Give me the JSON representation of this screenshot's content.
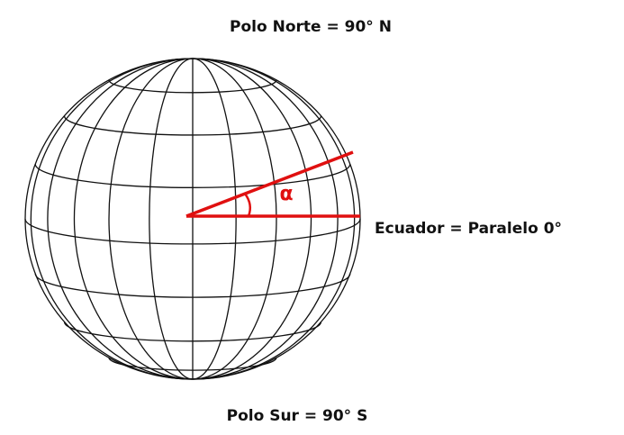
{
  "labels": {
    "north_pole": "Polo Norte = 90° N",
    "equator": "Ecuador = Paralelo 0°",
    "south_pole": "Polo Sur = 90° S",
    "angle": "α"
  }
}
